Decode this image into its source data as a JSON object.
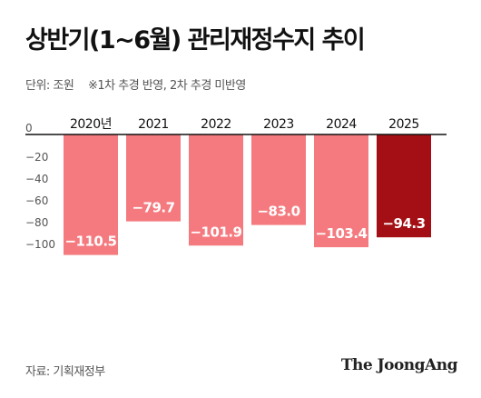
{
  "header": {
    "title": "상반기(1~6월) 관리재정수지 추이",
    "unit": "단위: 조원",
    "note": "※1차 추경 반영, 2차 추경 미반영"
  },
  "footer": {
    "source": "자료: 기획재정부",
    "logo": "The JoongAng"
  },
  "colors": {
    "bar": "#f47a7f",
    "bar_highlight": "#a30f14",
    "axis": "#111111",
    "tick_label": "#555555"
  },
  "chart_data": {
    "type": "bar",
    "categories": [
      "2020년",
      "2021",
      "2022",
      "2023",
      "2024",
      "2025"
    ],
    "values": [
      -110.5,
      -79.7,
      -101.9,
      -83.0,
      -103.4,
      -94.3
    ],
    "value_labels": [
      "−110.5",
      "−79.7",
      "−101.9",
      "−83.0",
      "−103.4",
      "−94.3"
    ],
    "highlight_index": 5,
    "ylim": [
      -120,
      0
    ],
    "yticks": [
      0,
      -20,
      -40,
      -60,
      -80,
      -100
    ],
    "ytick_labels": [
      "0",
      "−20",
      "−40",
      "−60",
      "−80",
      "−100"
    ],
    "grid": false,
    "xlabel": "",
    "ylabel": ""
  }
}
